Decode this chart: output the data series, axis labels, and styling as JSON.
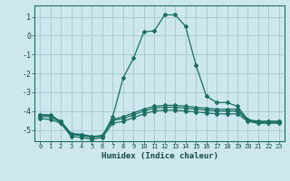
{
  "xlabel": "Humidex (Indice chaleur)",
  "background_color": "#cce8ee",
  "grid_color": "#aaccd4",
  "line_color": "#1a6e64",
  "xlim": [
    -0.5,
    23.5
  ],
  "ylim": [
    -5.6,
    1.6
  ],
  "yticks": [
    1,
    0,
    -1,
    -2,
    -3,
    -4,
    -5
  ],
  "xticks": [
    0,
    1,
    2,
    3,
    4,
    5,
    6,
    7,
    8,
    9,
    10,
    11,
    12,
    13,
    14,
    15,
    16,
    17,
    18,
    19,
    20,
    21,
    22,
    23
  ],
  "line1_x": [
    0,
    1,
    2,
    3,
    4,
    5,
    6,
    7,
    8,
    9,
    10,
    11,
    12,
    13,
    14,
    15,
    16,
    17,
    18,
    19,
    20,
    21,
    22,
    23
  ],
  "line1_y": [
    -4.2,
    -4.2,
    -4.55,
    -5.2,
    -5.25,
    -5.35,
    -5.35,
    -4.3,
    -2.25,
    -1.2,
    0.2,
    0.25,
    1.1,
    1.1,
    0.5,
    -1.55,
    -3.2,
    -3.55,
    -3.55,
    -3.75,
    -4.45,
    -4.55,
    -4.55,
    -4.55
  ],
  "line2_x": [
    0,
    1,
    2,
    3,
    4,
    5,
    6,
    7,
    8,
    9,
    10,
    11,
    12,
    13,
    14,
    15,
    16,
    17,
    18,
    19,
    20,
    21,
    22,
    23
  ],
  "line2_y": [
    -4.2,
    -4.25,
    -4.55,
    -5.2,
    -5.25,
    -5.35,
    -5.3,
    -4.45,
    -4.3,
    -4.1,
    -3.9,
    -3.75,
    -3.7,
    -3.7,
    -3.75,
    -3.8,
    -3.85,
    -3.9,
    -3.9,
    -3.9,
    -4.5,
    -4.55,
    -4.55,
    -4.55
  ],
  "line3_x": [
    0,
    1,
    2,
    3,
    4,
    5,
    6,
    7,
    8,
    9,
    10,
    11,
    12,
    13,
    14,
    15,
    16,
    17,
    18,
    19,
    20,
    21,
    22,
    23
  ],
  "line3_y": [
    -4.3,
    -4.3,
    -4.6,
    -5.25,
    -5.3,
    -5.4,
    -5.3,
    -4.5,
    -4.4,
    -4.2,
    -4.0,
    -3.85,
    -3.8,
    -3.8,
    -3.85,
    -3.9,
    -3.95,
    -4.0,
    -4.0,
    -4.0,
    -4.5,
    -4.6,
    -4.6,
    -4.6
  ],
  "line4_x": [
    0,
    1,
    2,
    3,
    4,
    5,
    6,
    7,
    8,
    9,
    10,
    11,
    12,
    13,
    14,
    15,
    16,
    17,
    18,
    19,
    20,
    21,
    22,
    23
  ],
  "line4_y": [
    -4.4,
    -4.45,
    -4.65,
    -5.35,
    -5.4,
    -5.5,
    -5.4,
    -4.65,
    -4.55,
    -4.35,
    -4.15,
    -4.0,
    -3.95,
    -3.95,
    -4.0,
    -4.05,
    -4.1,
    -4.15,
    -4.15,
    -4.15,
    -4.55,
    -4.65,
    -4.65,
    -4.65
  ]
}
